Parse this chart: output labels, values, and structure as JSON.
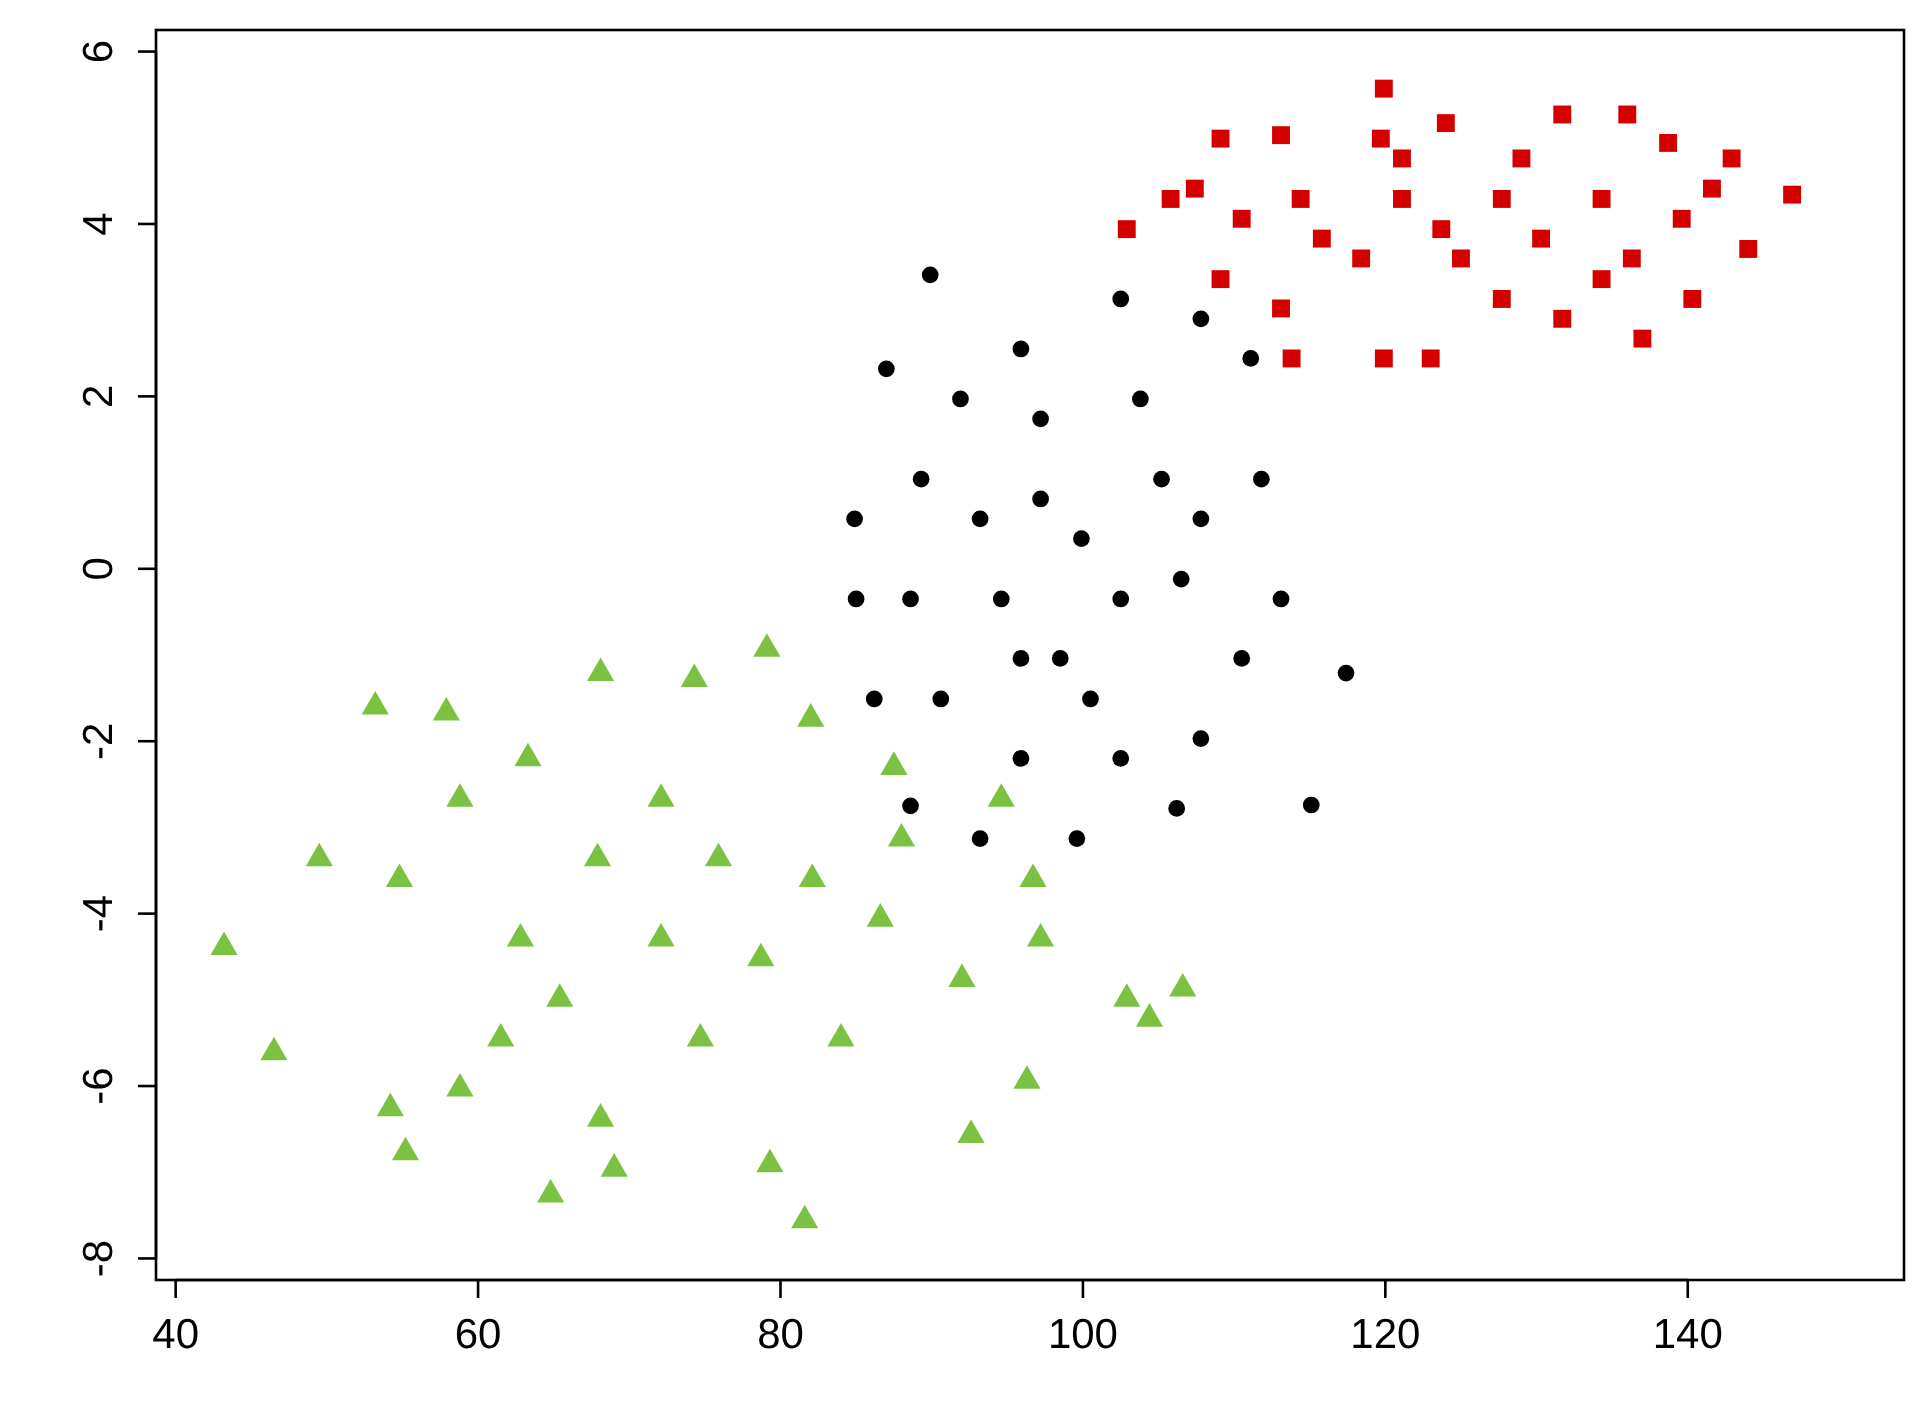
{
  "chart_data": {
    "type": "scatter",
    "xlim": [
      38.7,
      154.3
    ],
    "ylim": [
      -8.25,
      6.25
    ],
    "xticks": [
      40,
      60,
      80,
      100,
      120,
      140
    ],
    "yticks": [
      -8,
      -6,
      -4,
      -2,
      0,
      2,
      4,
      6
    ],
    "grid": false,
    "series": [
      {
        "color": "#d40000",
        "marker": "square",
        "x": [
          102.9,
          107.4,
          109.1,
          113.1,
          119.9,
          124.0,
          131.7,
          136.0,
          138.7,
          142.9,
          146.9,
          144.0,
          140.3,
          137.0,
          131.7,
          123.0,
          119.9,
          113.8,
          109.1,
          105.8,
          114.4,
          121.1,
          127.7,
          134.3,
          125.0,
          118.4,
          129.0,
          121.1,
          115.8,
          110.5,
          139.6,
          141.6,
          136.3,
          113.1,
          127.7,
          134.3,
          119.7,
          130.3,
          123.7
        ],
        "values": [
          3.94,
          4.41,
          4.99,
          5.03,
          5.57,
          5.17,
          5.27,
          5.27,
          4.94,
          4.76,
          4.34,
          3.71,
          3.13,
          2.67,
          2.9,
          2.44,
          2.44,
          2.44,
          3.36,
          4.29,
          4.29,
          4.29,
          4.29,
          4.29,
          3.6,
          3.6,
          4.76,
          4.76,
          3.83,
          4.06,
          4.06,
          4.41,
          3.6,
          3.02,
          3.13,
          3.36,
          4.99,
          3.83,
          3.94
        ]
      },
      {
        "color": "#000000",
        "marker": "circle",
        "x": [
          89.9,
          87.0,
          84.9,
          85.0,
          86.2,
          88.6,
          93.2,
          99.6,
          106.2,
          115.1,
          117.4,
          113.1,
          111.8,
          111.1,
          107.8,
          102.5,
          95.9,
          91.9,
          89.3,
          88.6,
          90.6,
          95.9,
          102.5,
          107.8,
          110.5,
          99.9,
          97.2,
          102.5,
          94.6,
          105.2,
          98.5,
          93.2,
          103.8,
          97.2,
          100.5,
          106.5,
          95.9,
          107.8
        ],
        "values": [
          3.41,
          2.32,
          0.58,
          -0.35,
          -1.51,
          -2.75,
          -3.13,
          -3.13,
          -2.78,
          -2.74,
          -1.21,
          -0.35,
          1.04,
          2.44,
          2.9,
          3.13,
          2.55,
          1.97,
          1.04,
          -0.35,
          -1.51,
          -2.2,
          -2.2,
          -1.97,
          -1.04,
          0.35,
          0.81,
          -0.35,
          -0.35,
          1.04,
          -1.04,
          0.58,
          1.97,
          1.74,
          -1.51,
          -0.12,
          -1.04,
          0.58
        ]
      },
      {
        "color": "#7cc242",
        "marker": "triangle",
        "x": [
          43.2,
          46.5,
          53.2,
          57.9,
          55.2,
          64.8,
          69.0,
          81.6,
          79.3,
          92.6,
          96.3,
          102.9,
          104.4,
          106.6,
          79.1,
          68.1,
          74.3,
          82.0,
          87.5,
          94.6,
          96.7,
          97.2,
          92.0,
          49.5,
          54.8,
          58.8,
          63.3,
          58.8,
          54.2,
          61.5,
          65.4,
          72.1,
          75.9,
          67.9,
          82.1,
          86.6,
          74.7,
          84.0,
          68.1,
          62.8,
          78.7,
          72.1,
          88.0
        ],
        "values": [
          -4.39,
          -5.61,
          -1.6,
          -1.67,
          -6.77,
          -7.26,
          -6.96,
          -7.56,
          -6.91,
          -6.57,
          -5.94,
          -4.99,
          -5.22,
          -4.87,
          -0.93,
          -1.21,
          -1.28,
          -1.74,
          -2.3,
          -2.67,
          -3.6,
          -4.29,
          -4.76,
          -3.36,
          -3.6,
          -2.67,
          -2.2,
          -6.03,
          -6.26,
          -5.45,
          -4.99,
          -4.29,
          -3.36,
          -3.36,
          -3.6,
          -4.06,
          -5.45,
          -5.45,
          -6.38,
          -4.29,
          -4.52,
          -2.67,
          -3.13
        ]
      }
    ]
  }
}
